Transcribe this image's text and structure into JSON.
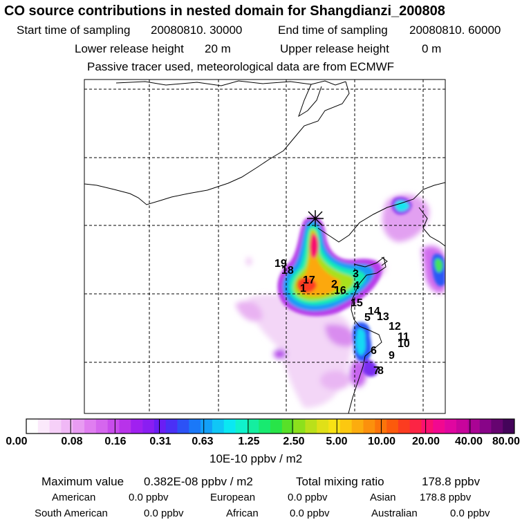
{
  "header": {
    "title": "CO  source contributions in nested domain for Shangdianzi_200808",
    "start_label": "Start time of sampling",
    "start_value": "20080810. 30000",
    "end_label": "End time of sampling",
    "end_value": "20080810. 60000",
    "lower_label": "Lower release height",
    "lower_value": "20 m",
    "upper_label": "Upper release height",
    "upper_value": "0 m",
    "note": "Passive tracer used, meteorological data are from ECMWF"
  },
  "map": {
    "receptor_marker": "asterisk-icon",
    "source_regions": [
      "1",
      "2",
      "3",
      "4",
      "5",
      "6",
      "7",
      "8",
      "9",
      "10",
      "11",
      "12",
      "13",
      "14",
      "15",
      "16",
      "17",
      "18",
      "19"
    ]
  },
  "colorbar": {
    "labels": [
      "0.00",
      "0.08",
      "0.16",
      "0.31",
      "0.63",
      "1.25",
      "2.50",
      "5.00",
      "10.00",
      "20.00",
      "40.00",
      "80.00"
    ],
    "colors": [
      "#ffffff",
      "#fbe9fb",
      "#f6d0f8",
      "#f0b8f6",
      "#e89cf2",
      "#e07ef0",
      "#d566ee",
      "#c84cec",
      "#b833ea",
      "#a020f0",
      "#8a1ef2",
      "#6a1ef4",
      "#4a30f6",
      "#2c52f6",
      "#1a78f8",
      "#12a0f8",
      "#10c6f6",
      "#0ae8f2",
      "#10f2cc",
      "#14eea0",
      "#18ea70",
      "#28e448",
      "#58e028",
      "#8ce01c",
      "#bae01a",
      "#e0e018",
      "#f8e214",
      "#fcc810",
      "#fcac0e",
      "#fc900c",
      "#fc740a",
      "#fc5a0c",
      "#fc3c20",
      "#fc2444",
      "#fa1070",
      "#f20890",
      "#e006a0",
      "#c8049c",
      "#aa0494",
      "#880488",
      "#660470",
      "#44045a"
    ],
    "unit": "10E-10 ppbv / m2"
  },
  "footer": {
    "max_label": "Maximum value",
    "max_value": "0.382E-08 ppbv / m2",
    "total_label": "Total mixing ratio",
    "total_value": "178.8 ppbv",
    "american_label": "American",
    "american_value": "0.0 ppbv",
    "european_label": "European",
    "european_value": "0.0 ppbv",
    "asian_label": "Asian",
    "asian_value": "178.8 ppbv",
    "south_american_label": "South American",
    "south_american_value": "0.0 ppbv",
    "african_label": "African",
    "african_value": "0.0 ppbv",
    "australian_label": "Australian",
    "australian_value": "0.0 ppbv"
  }
}
